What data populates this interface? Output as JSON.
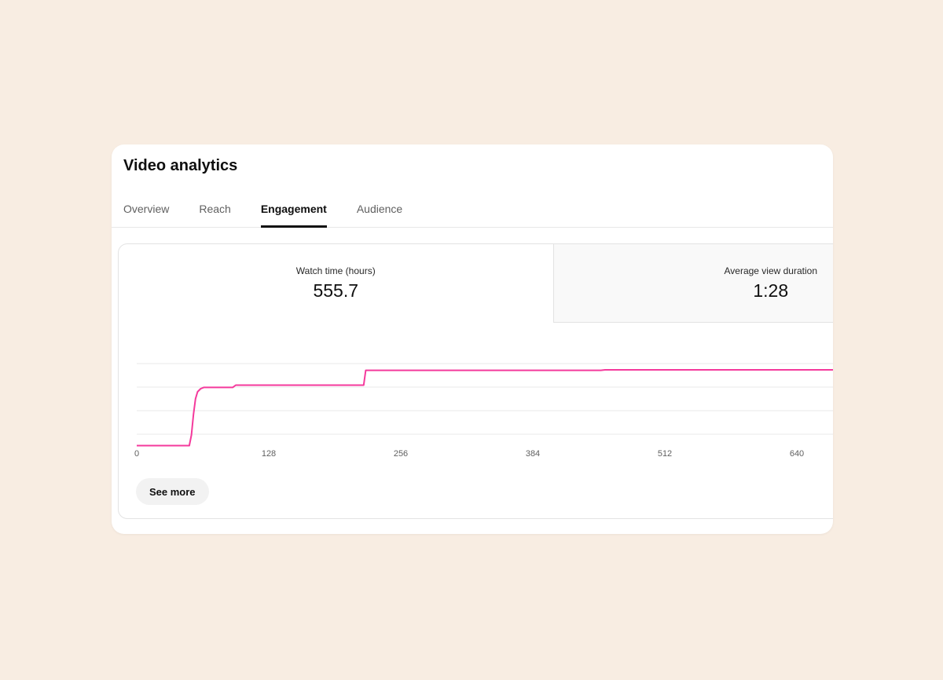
{
  "page_background": "#f8ede2",
  "card": {
    "title": "Video analytics",
    "tabs": [
      {
        "label": "Overview",
        "active": false
      },
      {
        "label": "Reach",
        "active": false
      },
      {
        "label": "Engagement",
        "active": true
      },
      {
        "label": "Audience",
        "active": false
      }
    ],
    "metrics": [
      {
        "label": "Watch time (hours)",
        "value": "555.7",
        "selected": true
      },
      {
        "label": "Average view duration",
        "value": "1:28",
        "selected": false
      }
    ],
    "see_more_label": "See more"
  },
  "chart_data": {
    "type": "line",
    "title": "",
    "xlabel": "",
    "ylabel": "",
    "x_ticks": [
      0,
      128,
      256,
      384,
      512,
      640
    ],
    "xlim": [
      0,
      680
    ],
    "ylim": [
      0,
      620
    ],
    "grid": "horizontal-unlabeled",
    "legend_position": "none",
    "line_color": "#f43a9c",
    "series": [
      {
        "name": "Watch time (hours)",
        "color": "#f43a9c",
        "points": [
          [
            0,
            3
          ],
          [
            51,
            3
          ],
          [
            53,
            80
          ],
          [
            55,
            230
          ],
          [
            57,
            345
          ],
          [
            59,
            395
          ],
          [
            62,
            418
          ],
          [
            65,
            427
          ],
          [
            93,
            427
          ],
          [
            96,
            444
          ],
          [
            220,
            444
          ],
          [
            222,
            552
          ],
          [
            450,
            552
          ],
          [
            454,
            555.7
          ],
          [
            680,
            555.7
          ]
        ]
      }
    ]
  }
}
